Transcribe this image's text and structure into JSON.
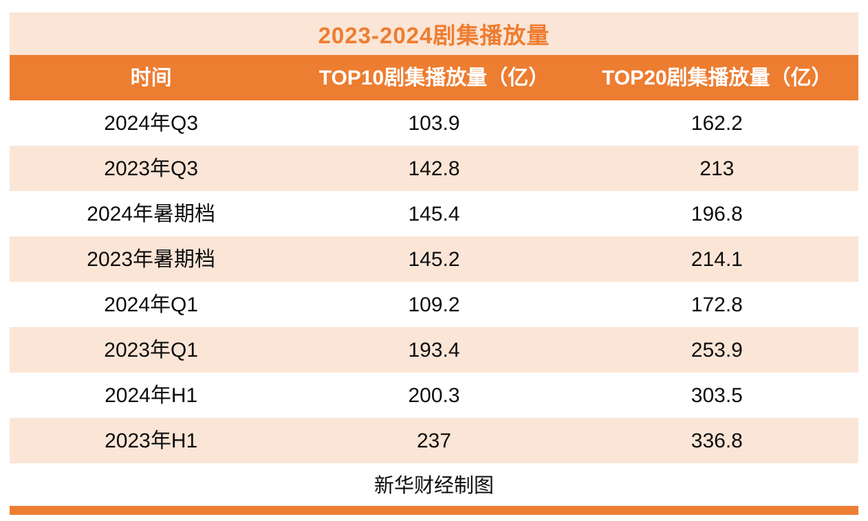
{
  "accent_color": "#ED7D31",
  "band_color": "#FBE5D6",
  "chart_data": {
    "type": "table",
    "title": "2023-2024剧集播放量",
    "columns": [
      "时间",
      "TOP10剧集播放量（亿）",
      "TOP20剧集播放量（亿）"
    ],
    "rows": [
      [
        "2024年Q3",
        "103.9",
        "162.2"
      ],
      [
        "2023年Q3",
        "142.8",
        "213"
      ],
      [
        "2024年暑期档",
        "145.4",
        "196.8"
      ],
      [
        "2023年暑期档",
        "145.2",
        "214.1"
      ],
      [
        "2024年Q1",
        "109.2",
        "172.8"
      ],
      [
        "2023年Q1",
        "193.4",
        "253.9"
      ],
      [
        "2024年H1",
        "200.3",
        "303.5"
      ],
      [
        "2023年H1",
        "237",
        "336.8"
      ]
    ],
    "footer": "新华财经制图"
  }
}
